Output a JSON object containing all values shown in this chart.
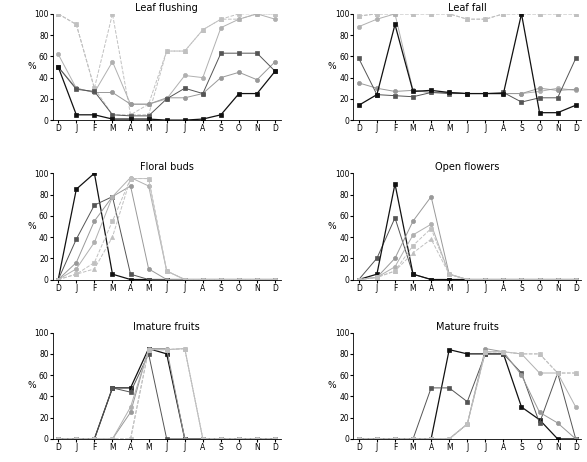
{
  "months": [
    "D",
    "J",
    "F",
    "M",
    "A",
    "M",
    "J",
    "J",
    "A",
    "S",
    "O",
    "N",
    "D"
  ],
  "titles": [
    "Leaf flushing",
    "Leaf fall",
    "Floral buds",
    "Open flowers",
    "Imature fruits",
    "Mature fruits"
  ],
  "panels": {
    "leaf_flushing": {
      "lines": [
        {
          "y": [
            100,
            90,
            30,
            100,
            5,
            5,
            65,
            65,
            85,
            95,
            100,
            100,
            100
          ],
          "color": "#c0c0c0",
          "style": "--",
          "marker": "s",
          "ms": 3
        },
        {
          "y": [
            100,
            90,
            30,
            5,
            5,
            15,
            65,
            65,
            85,
            95,
            95,
            100,
            100
          ],
          "color": "#c0c0c0",
          "style": "--",
          "marker": "^",
          "ms": 3
        },
        {
          "y": [
            62,
            30,
            26,
            55,
            15,
            15,
            20,
            42,
            40,
            87,
            95,
            100,
            95
          ],
          "color": "#b0b0b0",
          "style": "-",
          "marker": "o",
          "ms": 3
        },
        {
          "y": [
            50,
            30,
            26,
            26,
            15,
            15,
            21,
            21,
            25,
            40,
            45,
            38,
            55
          ],
          "color": "#999999",
          "style": "-",
          "marker": "o",
          "ms": 3
        },
        {
          "y": [
            50,
            29,
            27,
            5,
            4,
            4,
            20,
            30,
            25,
            63,
            63,
            63,
            46
          ],
          "color": "#555555",
          "style": "-",
          "marker": "s",
          "ms": 3
        },
        {
          "y": [
            50,
            5,
            5,
            1,
            1,
            1,
            0,
            0,
            1,
            5,
            25,
            25,
            46
          ],
          "color": "#111111",
          "style": "-",
          "marker": "s",
          "ms": 3
        }
      ]
    },
    "leaf_fall": {
      "lines": [
        {
          "y": [
            98,
            100,
            100,
            100,
            100,
            100,
            95,
            95,
            100,
            100,
            100,
            100,
            100
          ],
          "color": "#c0c0c0",
          "style": "--",
          "marker": "s",
          "ms": 3
        },
        {
          "y": [
            98,
            100,
            100,
            100,
            100,
            100,
            95,
            95,
            100,
            100,
            100,
            100,
            100
          ],
          "color": "#c0c0c0",
          "style": "--",
          "marker": "^",
          "ms": 3
        },
        {
          "y": [
            88,
            95,
            100,
            28,
            26,
            26,
            25,
            25,
            25,
            25,
            27,
            30,
            28
          ],
          "color": "#b0b0b0",
          "style": "-",
          "marker": "o",
          "ms": 3
        },
        {
          "y": [
            35,
            30,
            27,
            28,
            26,
            26,
            25,
            25,
            25,
            25,
            30,
            28,
            29
          ],
          "color": "#999999",
          "style": "-",
          "marker": "o",
          "ms": 3
        },
        {
          "y": [
            58,
            24,
            23,
            22,
            26,
            25,
            25,
            25,
            26,
            17,
            21,
            21,
            58
          ],
          "color": "#555555",
          "style": "-",
          "marker": "s",
          "ms": 3
        },
        {
          "y": [
            14,
            24,
            90,
            27,
            28,
            26,
            25,
            25,
            25,
            100,
            7,
            7,
            14
          ],
          "color": "#111111",
          "style": "-",
          "marker": "s",
          "ms": 3
        }
      ]
    },
    "floral_buds": {
      "lines": [
        {
          "y": [
            0,
            85,
            100,
            5,
            0,
            0,
            0,
            0,
            0,
            0,
            0,
            0,
            0
          ],
          "color": "#111111",
          "style": "-",
          "marker": "s",
          "ms": 3
        },
        {
          "y": [
            0,
            38,
            70,
            78,
            5,
            0,
            0,
            0,
            0,
            0,
            0,
            0,
            0
          ],
          "color": "#555555",
          "style": "-",
          "marker": "s",
          "ms": 3
        },
        {
          "y": [
            0,
            16,
            55,
            78,
            88,
            10,
            0,
            0,
            0,
            0,
            0,
            0,
            0
          ],
          "color": "#999999",
          "style": "-",
          "marker": "o",
          "ms": 3
        },
        {
          "y": [
            0,
            10,
            35,
            78,
            96,
            88,
            8,
            0,
            0,
            0,
            0,
            0,
            0
          ],
          "color": "#b0b0b0",
          "style": "-",
          "marker": "o",
          "ms": 3
        },
        {
          "y": [
            0,
            5,
            16,
            55,
            95,
            95,
            8,
            0,
            0,
            0,
            0,
            0,
            0
          ],
          "color": "#c0c0c0",
          "style": "--",
          "marker": "s",
          "ms": 3
        },
        {
          "y": [
            0,
            5,
            10,
            40,
            95,
            95,
            8,
            0,
            0,
            0,
            0,
            0,
            0
          ],
          "color": "#c0c0c0",
          "style": "--",
          "marker": "^",
          "ms": 3
        }
      ]
    },
    "open_flowers": {
      "lines": [
        {
          "y": [
            0,
            20,
            58,
            5,
            0,
            0,
            0,
            0,
            0,
            0,
            0,
            0,
            0
          ],
          "color": "#555555",
          "style": "-",
          "marker": "s",
          "ms": 3
        },
        {
          "y": [
            0,
            5,
            90,
            5,
            0,
            0,
            0,
            0,
            0,
            0,
            0,
            0,
            0
          ],
          "color": "#111111",
          "style": "-",
          "marker": "s",
          "ms": 3
        },
        {
          "y": [
            0,
            2,
            20,
            55,
            78,
            5,
            0,
            0,
            0,
            0,
            0,
            0,
            0
          ],
          "color": "#999999",
          "style": "-",
          "marker": "o",
          "ms": 3
        },
        {
          "y": [
            0,
            2,
            12,
            42,
            52,
            5,
            0,
            0,
            0,
            0,
            0,
            0,
            0
          ],
          "color": "#b0b0b0",
          "style": "-",
          "marker": "o",
          "ms": 3
        },
        {
          "y": [
            0,
            2,
            8,
            32,
            48,
            5,
            0,
            0,
            0,
            0,
            0,
            0,
            0
          ],
          "color": "#c0c0c0",
          "style": "--",
          "marker": "s",
          "ms": 3
        },
        {
          "y": [
            0,
            2,
            8,
            25,
            38,
            5,
            0,
            0,
            0,
            0,
            0,
            0,
            0
          ],
          "color": "#c0c0c0",
          "style": "--",
          "marker": "^",
          "ms": 3
        }
      ]
    },
    "imature_fruits": {
      "lines": [
        {
          "y": [
            0,
            0,
            0,
            48,
            48,
            85,
            80,
            0,
            0,
            0,
            0,
            0,
            0
          ],
          "color": "#111111",
          "style": "-",
          "marker": "s",
          "ms": 3
        },
        {
          "y": [
            0,
            0,
            0,
            48,
            44,
            80,
            0,
            0,
            0,
            0,
            0,
            0,
            0
          ],
          "color": "#555555",
          "style": "-",
          "marker": "s",
          "ms": 3
        },
        {
          "y": [
            0,
            0,
            0,
            0,
            25,
            85,
            85,
            0,
            0,
            0,
            0,
            0,
            0
          ],
          "color": "#999999",
          "style": "-",
          "marker": "o",
          "ms": 3
        },
        {
          "y": [
            0,
            0,
            0,
            0,
            30,
            84,
            84,
            85,
            0,
            0,
            0,
            0,
            0
          ],
          "color": "#b0b0b0",
          "style": "-",
          "marker": "o",
          "ms": 3
        },
        {
          "y": [
            0,
            0,
            0,
            0,
            0,
            84,
            84,
            85,
            0,
            0,
            0,
            0,
            0
          ],
          "color": "#c0c0c0",
          "style": "--",
          "marker": "s",
          "ms": 3
        },
        {
          "y": [
            0,
            0,
            0,
            0,
            0,
            84,
            84,
            85,
            0,
            0,
            0,
            0,
            0
          ],
          "color": "#c0c0c0",
          "style": "--",
          "marker": "^",
          "ms": 3
        }
      ]
    },
    "mature_fruits": {
      "lines": [
        {
          "y": [
            0,
            0,
            0,
            0,
            0,
            84,
            80,
            80,
            80,
            30,
            18,
            0,
            0
          ],
          "color": "#111111",
          "style": "-",
          "marker": "s",
          "ms": 3
        },
        {
          "y": [
            0,
            0,
            0,
            0,
            48,
            48,
            35,
            80,
            80,
            62,
            15,
            62,
            0
          ],
          "color": "#555555",
          "style": "-",
          "marker": "s",
          "ms": 3
        },
        {
          "y": [
            0,
            0,
            0,
            0,
            0,
            0,
            14,
            85,
            82,
            60,
            25,
            15,
            0
          ],
          "color": "#999999",
          "style": "-",
          "marker": "o",
          "ms": 3
        },
        {
          "y": [
            0,
            0,
            0,
            0,
            0,
            0,
            14,
            82,
            82,
            80,
            62,
            62,
            30
          ],
          "color": "#b0b0b0",
          "style": "-",
          "marker": "o",
          "ms": 3
        },
        {
          "y": [
            0,
            0,
            0,
            0,
            0,
            0,
            14,
            82,
            82,
            80,
            80,
            62,
            62
          ],
          "color": "#c0c0c0",
          "style": "--",
          "marker": "s",
          "ms": 3
        },
        {
          "y": [
            0,
            0,
            0,
            0,
            0,
            0,
            14,
            82,
            82,
            80,
            80,
            62,
            62
          ],
          "color": "#c0c0c0",
          "style": "--",
          "marker": "^",
          "ms": 3
        }
      ]
    }
  },
  "ylim": [
    0,
    100
  ],
  "ylabel": "%",
  "background_color": "#ffffff"
}
